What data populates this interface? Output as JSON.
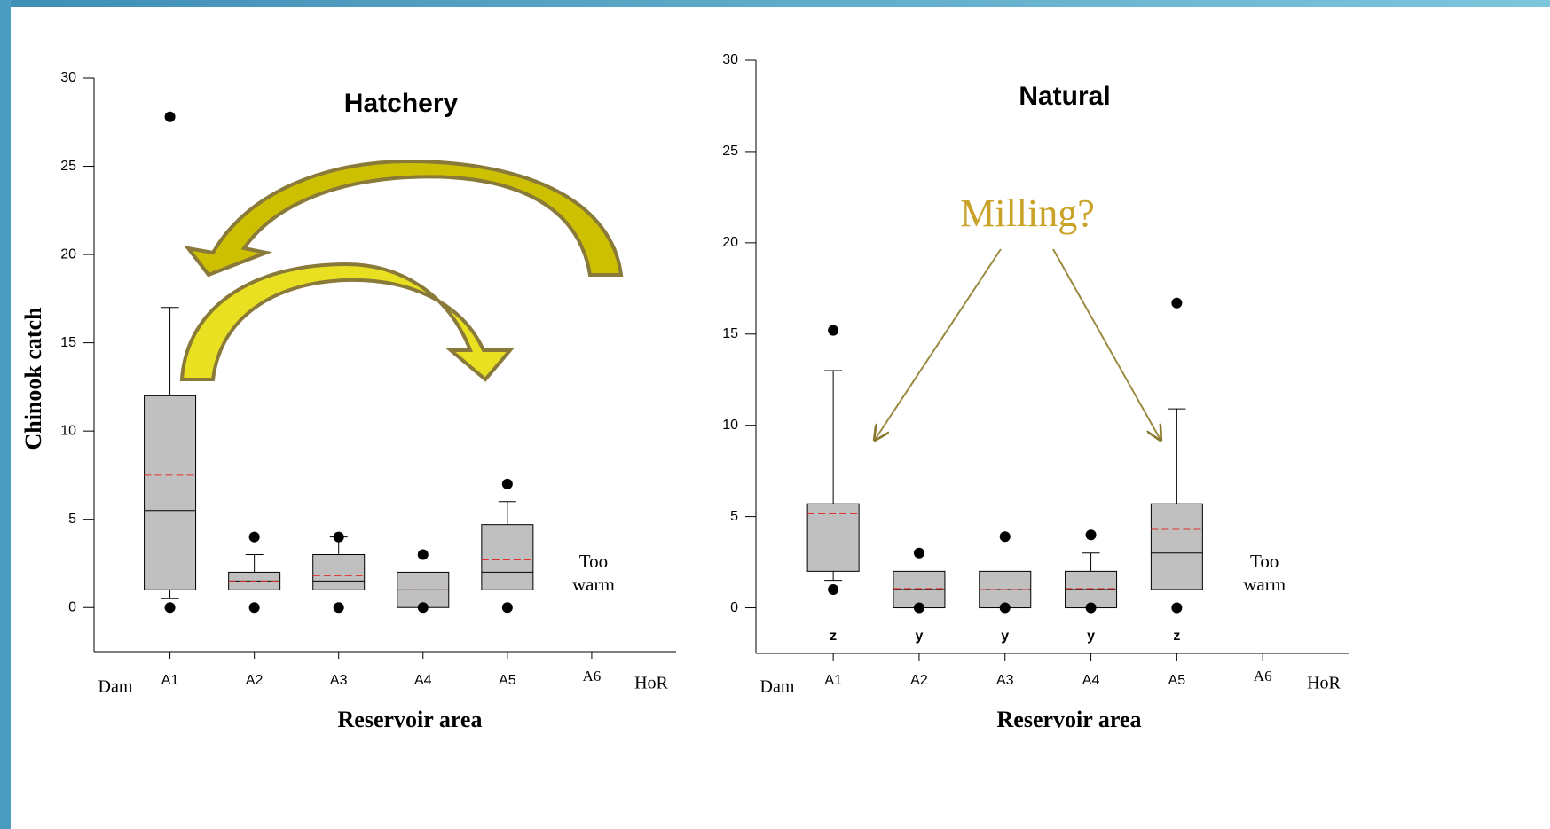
{
  "chart_data": [
    {
      "type": "box",
      "title": "Hatchery",
      "y_label": "Chinook catch",
      "x_label": "Reservoir area",
      "categories": [
        "A1",
        "A2",
        "A3",
        "A4",
        "A5",
        "A6"
      ],
      "end_labels": [
        "Dam",
        "HoR"
      ],
      "ylim": [
        -2.5,
        30
      ],
      "yticks": [
        0,
        5,
        10,
        15,
        20,
        25,
        30
      ],
      "box_color": "#c0c0c0",
      "mean_color": "#e03030",
      "boxes": [
        {
          "low": 0.5,
          "q1": 1,
          "median": 5.5,
          "q3": 12,
          "high": 17,
          "mean": 7.5,
          "outliers": [
            0,
            27.8
          ]
        },
        {
          "low": 1,
          "q1": 1,
          "median": 1.5,
          "q3": 2,
          "high": 3,
          "mean": 1.5,
          "outliers": [
            0,
            4
          ]
        },
        {
          "low": 1,
          "q1": 1,
          "median": 1.5,
          "q3": 3,
          "high": 4,
          "mean": 1.8,
          "outliers": [
            0,
            4
          ]
        },
        {
          "low": 0,
          "q1": 0,
          "median": 1,
          "q3": 2,
          "high": 2,
          "mean": 1,
          "outliers": [
            0,
            3
          ]
        },
        {
          "low": 1,
          "q1": 1,
          "median": 2,
          "q3": 4.7,
          "high": 6,
          "mean": 2.7,
          "outliers": [
            0,
            7
          ]
        },
        null
      ],
      "annotation_lines": [
        "Too",
        "warm"
      ]
    },
    {
      "type": "box",
      "title": "Natural",
      "x_label": "Reservoir area",
      "categories": [
        "A1",
        "A2",
        "A3",
        "A4",
        "A5",
        "A6"
      ],
      "end_labels": [
        "Dam",
        "HoR"
      ],
      "ylim": [
        -2.5,
        30
      ],
      "yticks": [
        0,
        5,
        10,
        15,
        20,
        25,
        30
      ],
      "box_color": "#c0c0c0",
      "mean_color": "#e03030",
      "boxes": [
        {
          "low": 1.5,
          "q1": 2,
          "median": 3.5,
          "q3": 5.7,
          "high": 13,
          "mean": 5.15,
          "outliers": [
            1,
            15.2
          ]
        },
        {
          "low": 0,
          "q1": 0,
          "median": 1,
          "q3": 2,
          "high": 2,
          "mean": 1.05,
          "outliers": [
            0,
            3
          ]
        },
        {
          "low": 0,
          "q1": 0,
          "median": 1,
          "q3": 2,
          "high": 2,
          "mean": 1,
          "outliers": [
            0,
            3.9
          ]
        },
        {
          "low": 0,
          "q1": 0,
          "median": 1,
          "q3": 2,
          "high": 3,
          "mean": 1.05,
          "outliers": [
            0,
            4
          ]
        },
        {
          "low": 1,
          "q1": 1,
          "median": 3,
          "q3": 5.7,
          "high": 10.9,
          "mean": 4.3,
          "outliers": [
            0,
            16.7
          ]
        },
        null
      ],
      "group_labels": [
        "z",
        "y",
        "y",
        "y",
        "z",
        null
      ],
      "annotation_lines": [
        "Too",
        "warm"
      ],
      "callout": "Milling?"
    }
  ]
}
